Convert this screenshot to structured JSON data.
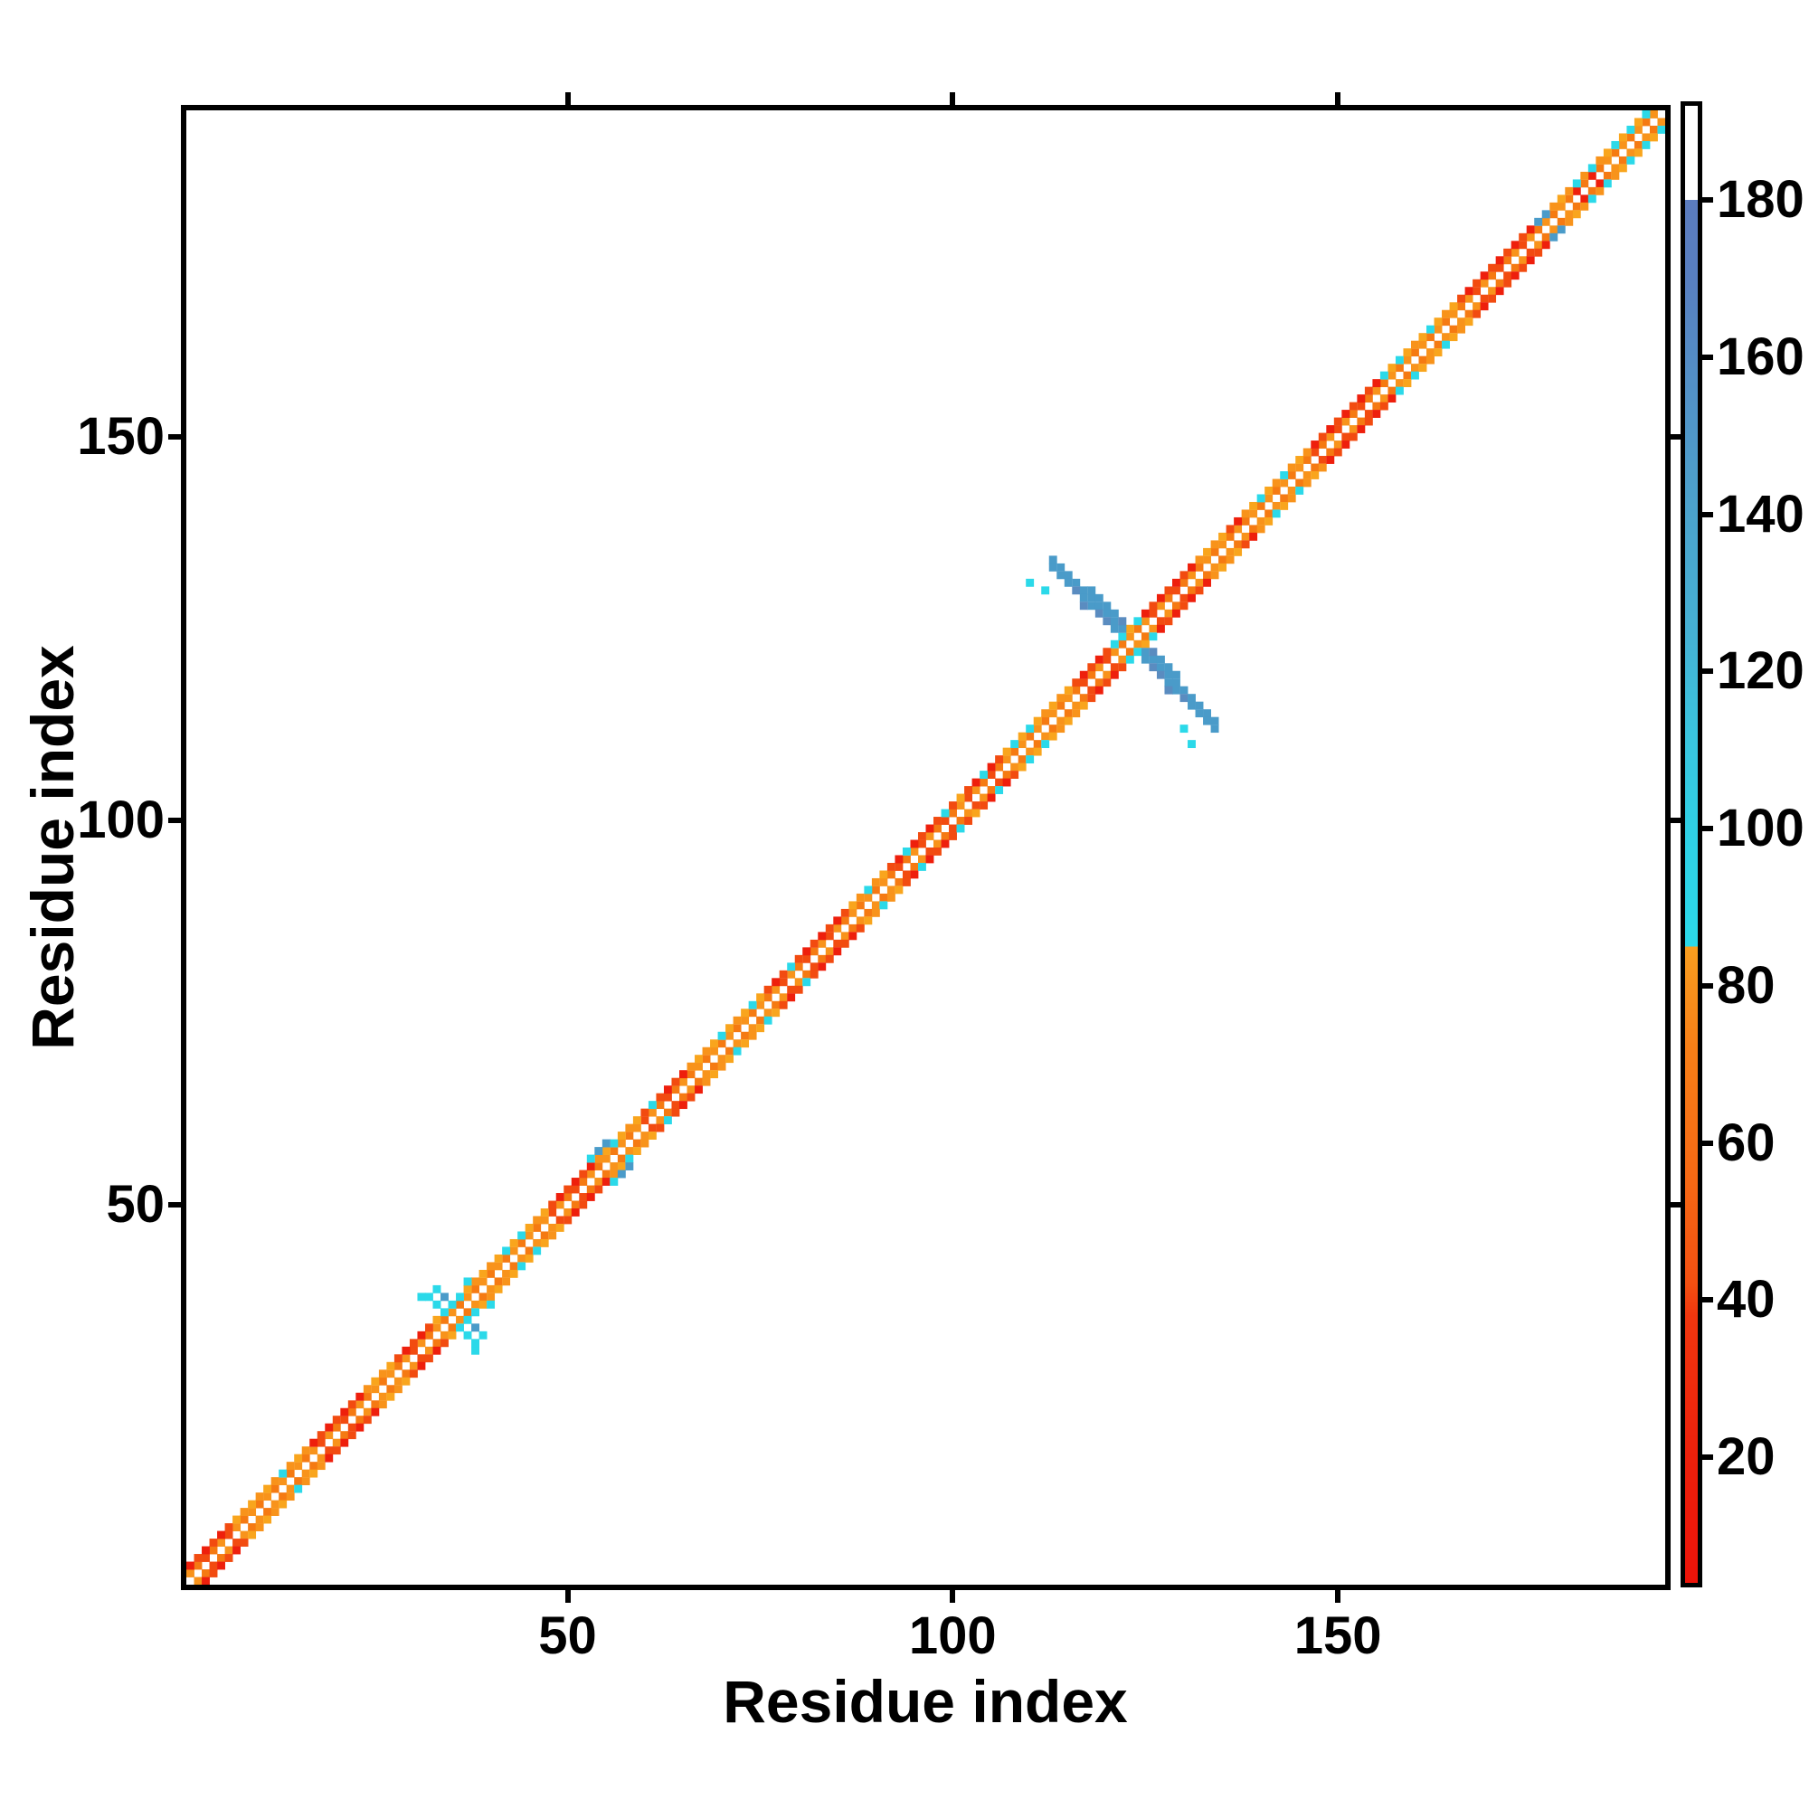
{
  "figure": {
    "background": "#ffffff",
    "frame_color": "#000000",
    "kind": "protein residue-residue contact map colored by a 20-190 valued scale"
  },
  "chart_data": {
    "type": "heatmap",
    "title": "",
    "xlabel": "Residue index",
    "ylabel": "Residue index",
    "x_range": [
      0,
      192
    ],
    "y_range": [
      0,
      192
    ],
    "x_ticks": [
      50,
      100,
      150
    ],
    "y_ticks": [
      50,
      100,
      150
    ],
    "grid": false,
    "legend_position": "none",
    "colorbar": {
      "side": "right",
      "value_range": [
        4,
        192
      ],
      "ticks": [
        20,
        40,
        60,
        80,
        100,
        120,
        140,
        160,
        180
      ],
      "stops": [
        {
          "v": 4,
          "color": "#ED1309"
        },
        {
          "v": 20,
          "color": "#EE200B"
        },
        {
          "v": 38,
          "color": "#F0360E"
        },
        {
          "v": 42,
          "color": "#F34F11"
        },
        {
          "v": 55,
          "color": "#F66814"
        },
        {
          "v": 72,
          "color": "#F87F17"
        },
        {
          "v": 85,
          "color": "#F99E1F"
        },
        {
          "v": 85.01,
          "color": "#2BD9E9"
        },
        {
          "v": 100,
          "color": "#2FD0E5"
        },
        {
          "v": 112,
          "color": "#3AC4DE"
        },
        {
          "v": 125,
          "color": "#45B1D4"
        },
        {
          "v": 140,
          "color": "#4BA3CC"
        },
        {
          "v": 155,
          "color": "#5292C7"
        },
        {
          "v": 170,
          "color": "#587FC0"
        },
        {
          "v": 180,
          "color": "#5B7CBE"
        },
        {
          "v": 180.01,
          "color": "#FFFFFF"
        },
        {
          "v": 192,
          "color": "#FFFFFF"
        }
      ]
    },
    "matrix_spec": {
      "n": 192,
      "diagonal_color": "white",
      "palette": {
        "orange": "#F8931B",
        "orange2": "#F57A12",
        "orange3": "#F9A51D",
        "red": "#EE1F0C",
        "redorange": "#F24B10",
        "cyan": "#2BD9E9",
        "steel": "#4A9BC9",
        "steel2": "#5A8CC0"
      },
      "band_description": "white main diagonal flanked by contacts at |i-j|=1 (orange tones) and |i-j|=2 (orange or red rails by segment); sparse cyan specks; two small and one large anti-diagonal beta-hairpin crossings in blue",
      "red_outer_segments": [
        [
          1,
          6
        ],
        [
          17,
          23
        ],
        [
          28,
          32
        ],
        [
          48,
          53
        ],
        [
          60,
          65
        ],
        [
          76,
          86
        ],
        [
          92,
          100
        ],
        [
          102,
          106
        ],
        [
          116,
          122
        ],
        [
          125,
          131
        ],
        [
          136,
          137
        ],
        [
          147,
          155
        ],
        [
          166,
          175
        ]
      ],
      "corner_red_inner": [
        180,
        183
      ],
      "cyan_speck_rows": [
        13,
        42,
        44,
        61,
        70,
        74,
        79,
        89,
        94,
        99,
        104,
        108,
        110,
        140,
        143,
        156,
        158,
        162,
        181,
        183,
        186,
        188,
        190
      ],
      "steel_speck_rows": [
        176,
        177
      ],
      "features": {
        "small_hairpin_A": {
          "center": 36,
          "cyan_cells": [
            [
              31,
              38
            ],
            [
              32,
              38
            ],
            [
              33,
              37
            ],
            [
              33,
              39
            ],
            [
              34,
              36
            ],
            [
              35,
              37
            ],
            [
              36,
              38
            ],
            [
              37,
              40
            ],
            [
              38,
              31
            ],
            [
              38,
              32
            ],
            [
              37,
              33
            ],
            [
              39,
              33
            ],
            [
              36,
              34
            ],
            [
              37,
              35
            ],
            [
              38,
              36
            ],
            [
              40,
              37
            ]
          ],
          "steel_cells": [
            [
              34,
              38
            ],
            [
              38,
              34
            ]
          ]
        },
        "small_hairpin_B": {
          "center": 56,
          "steel_cells": [
            [
              54,
              57
            ],
            [
              57,
              54
            ],
            [
              55,
              58
            ],
            [
              58,
              55
            ]
          ],
          "cyan_cells": [
            [
              53,
              56
            ],
            [
              56,
              53
            ],
            [
              56,
              58
            ],
            [
              58,
              56
            ]
          ]
        },
        "large_hairpin_C": {
          "anti_diagonal_sum": 247,
          "i_start": 113,
          "i_end": 134,
          "thick3_range": [
            118,
            129
          ],
          "arm_color": "steel",
          "dark_cells": [
            [
              116,
              130
            ],
            [
              119,
              127
            ],
            [
              122,
              126
            ],
            [
              126,
              120
            ],
            [
              128,
              117
            ]
          ],
          "crossing_cyan_cells": [
            [
              122,
              124
            ],
            [
              124,
              122
            ],
            [
              121,
              123
            ],
            [
              123,
              121
            ],
            [
              124,
              126
            ],
            [
              126,
              124
            ]
          ],
          "isolated_cyan_dots": [
            [
              110,
              131
            ],
            [
              112,
              130
            ],
            [
              130,
              112
            ],
            [
              131,
              110
            ]
          ]
        }
      }
    }
  }
}
